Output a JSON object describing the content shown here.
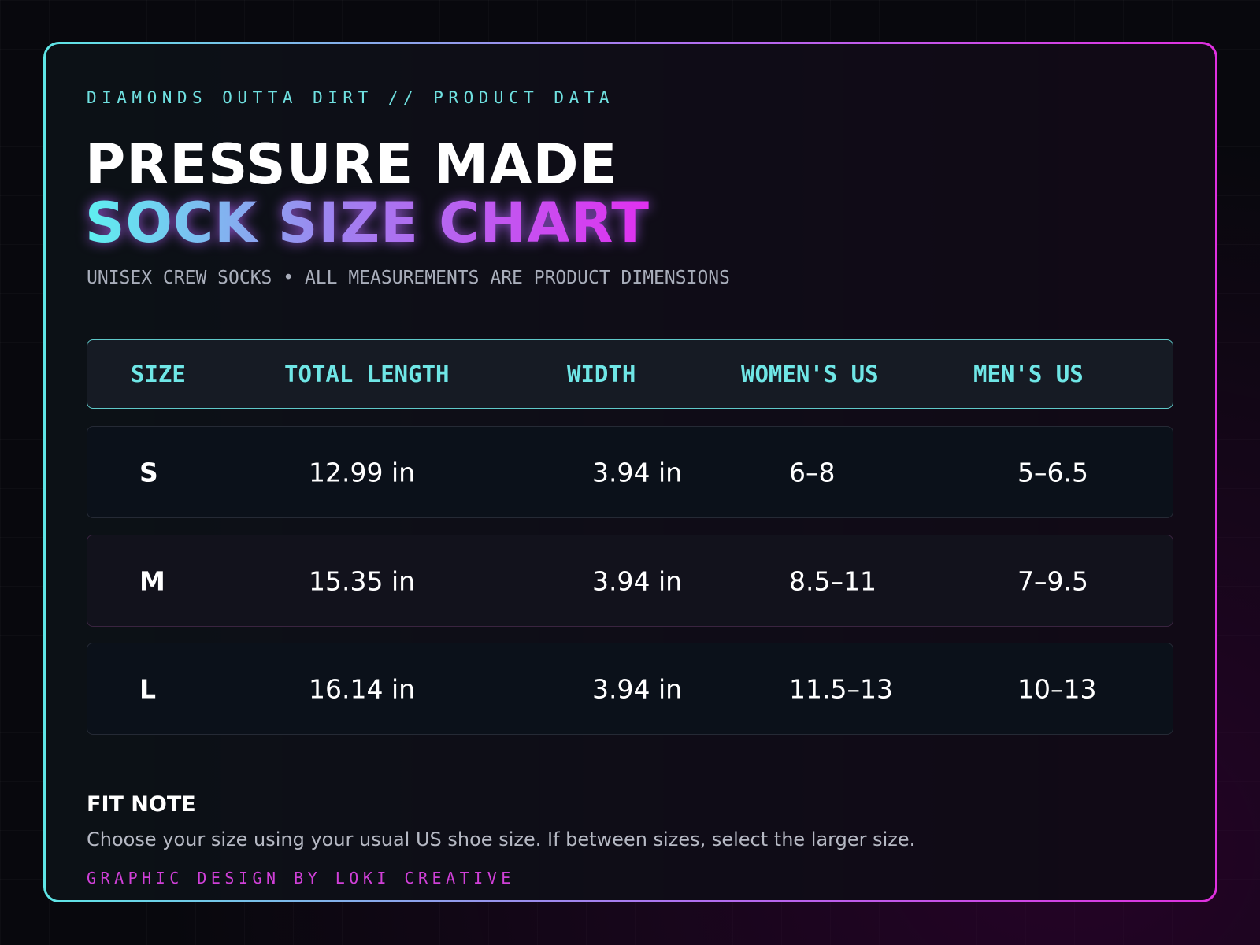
{
  "header": {
    "eyebrow": "DIAMONDS OUTTA DIRT // PRODUCT DATA",
    "title": "PRESSURE MADE",
    "subtitle": "SOCK SIZE CHART",
    "tagline": "UNISEX CREW SOCKS • ALL MEASUREMENTS ARE PRODUCT DIMENSIONS"
  },
  "table": {
    "columns": [
      "SIZE",
      "TOTAL LENGTH",
      "WIDTH",
      "WOMEN'S US",
      "MEN'S US"
    ],
    "rows": [
      [
        "S",
        "12.99 in",
        "3.94 in",
        "6–8",
        "5–6.5"
      ],
      [
        "M",
        "15.35 in",
        "3.94 in",
        "8.5–11",
        "7–9.5"
      ],
      [
        "L",
        "16.14 in",
        "3.94 in",
        "11.5–13",
        "10–13"
      ]
    ]
  },
  "note": {
    "title": "FIT NOTE",
    "text": "Choose your size using your usual US shoe size. If between sizes, select the larger size."
  },
  "credit": "GRAPHIC DESIGN BY LOKI CREATIVE"
}
